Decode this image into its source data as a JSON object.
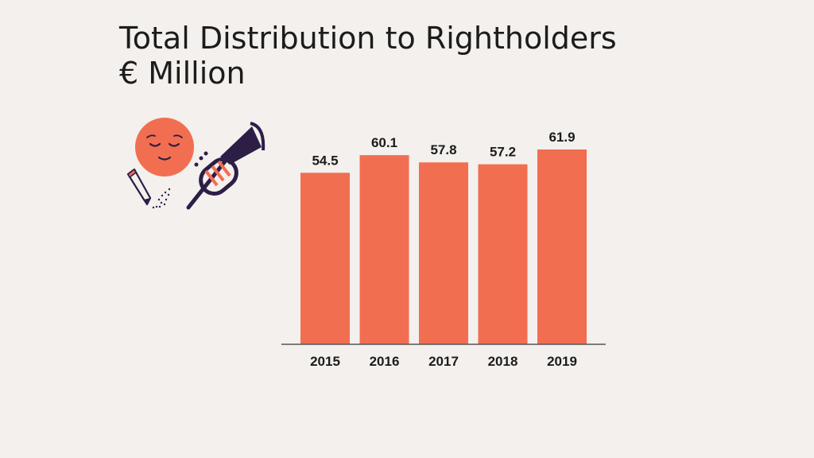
{
  "title": {
    "line1": "Total Distribution to Rightholders",
    "line2": "€ Million"
  },
  "colors": {
    "bar": "#f26e51",
    "text": "#1c1c1c",
    "background": "#f3f0ed",
    "illustration_dark": "#2d1e46"
  },
  "illustration": {
    "icons": [
      "face-icon",
      "pencil-icon",
      "trumpet-icon"
    ]
  },
  "chart_data": {
    "type": "bar",
    "categories": [
      "2015",
      "2016",
      "2017",
      "2018",
      "2019"
    ],
    "values": [
      54.5,
      60.1,
      57.8,
      57.2,
      61.9
    ],
    "value_labels": [
      "54.5",
      "60.1",
      "57.8",
      "57.2",
      "61.9"
    ],
    "title": "Total Distribution to Rightholders",
    "subtitle": "€ Million",
    "xlabel": "",
    "ylabel": "",
    "ylim": [
      0,
      61.9
    ],
    "grid": false,
    "legend": "none"
  }
}
